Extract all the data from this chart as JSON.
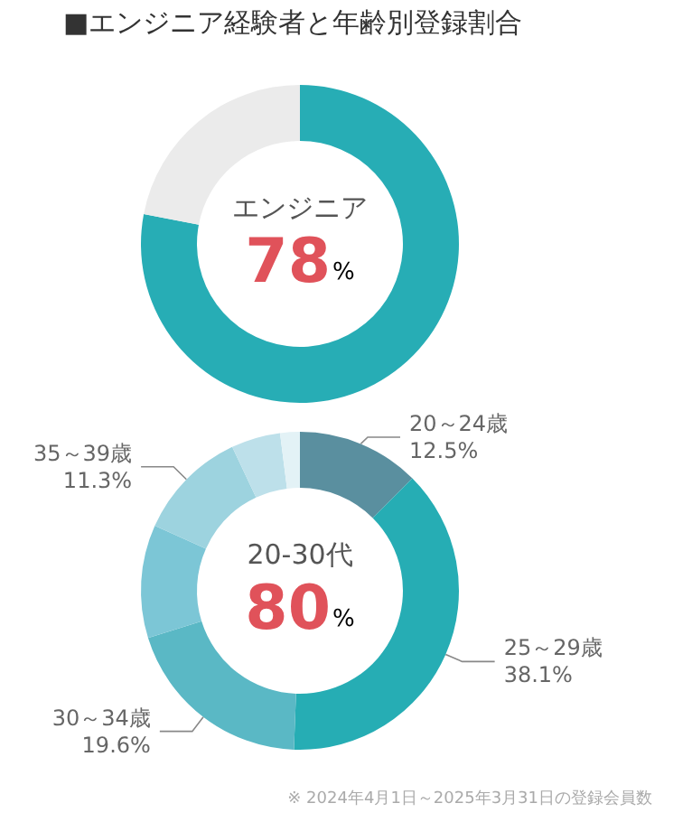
{
  "chart_data": [
    {
      "type": "donut",
      "title": "■エンジニア経験者と年齢別登録割合",
      "categories": [
        "エンジニア",
        null
      ],
      "values": [
        78,
        22
      ],
      "colors": [
        "#27adb5",
        "#ebebeb"
      ],
      "value_labels": [
        "78%",
        null
      ],
      "legend": false
    },
    {
      "type": "donut",
      "categories": [
        "20～24歳",
        "25～29歳",
        "30～34歳",
        null,
        "35～39歳",
        null,
        null
      ],
      "values": [
        12.5,
        38.1,
        19.6,
        11.5,
        11.3,
        5,
        2
      ],
      "colors": [
        "#5a8f9f",
        "#26adb4",
        "#5ab8c5",
        "#7cc6d6",
        "#9dd3df",
        "#bde0ea",
        "#e3f2f6"
      ],
      "value_labels": [
        "12.5%",
        "38.1%",
        "19.6%",
        null,
        "11.3%",
        null,
        null
      ],
      "annotations": [
        "20-30代",
        "80%",
        "※ 2024年4月1日～2025年3月31日の登録会員数"
      ],
      "legend": false
    }
  ]
}
